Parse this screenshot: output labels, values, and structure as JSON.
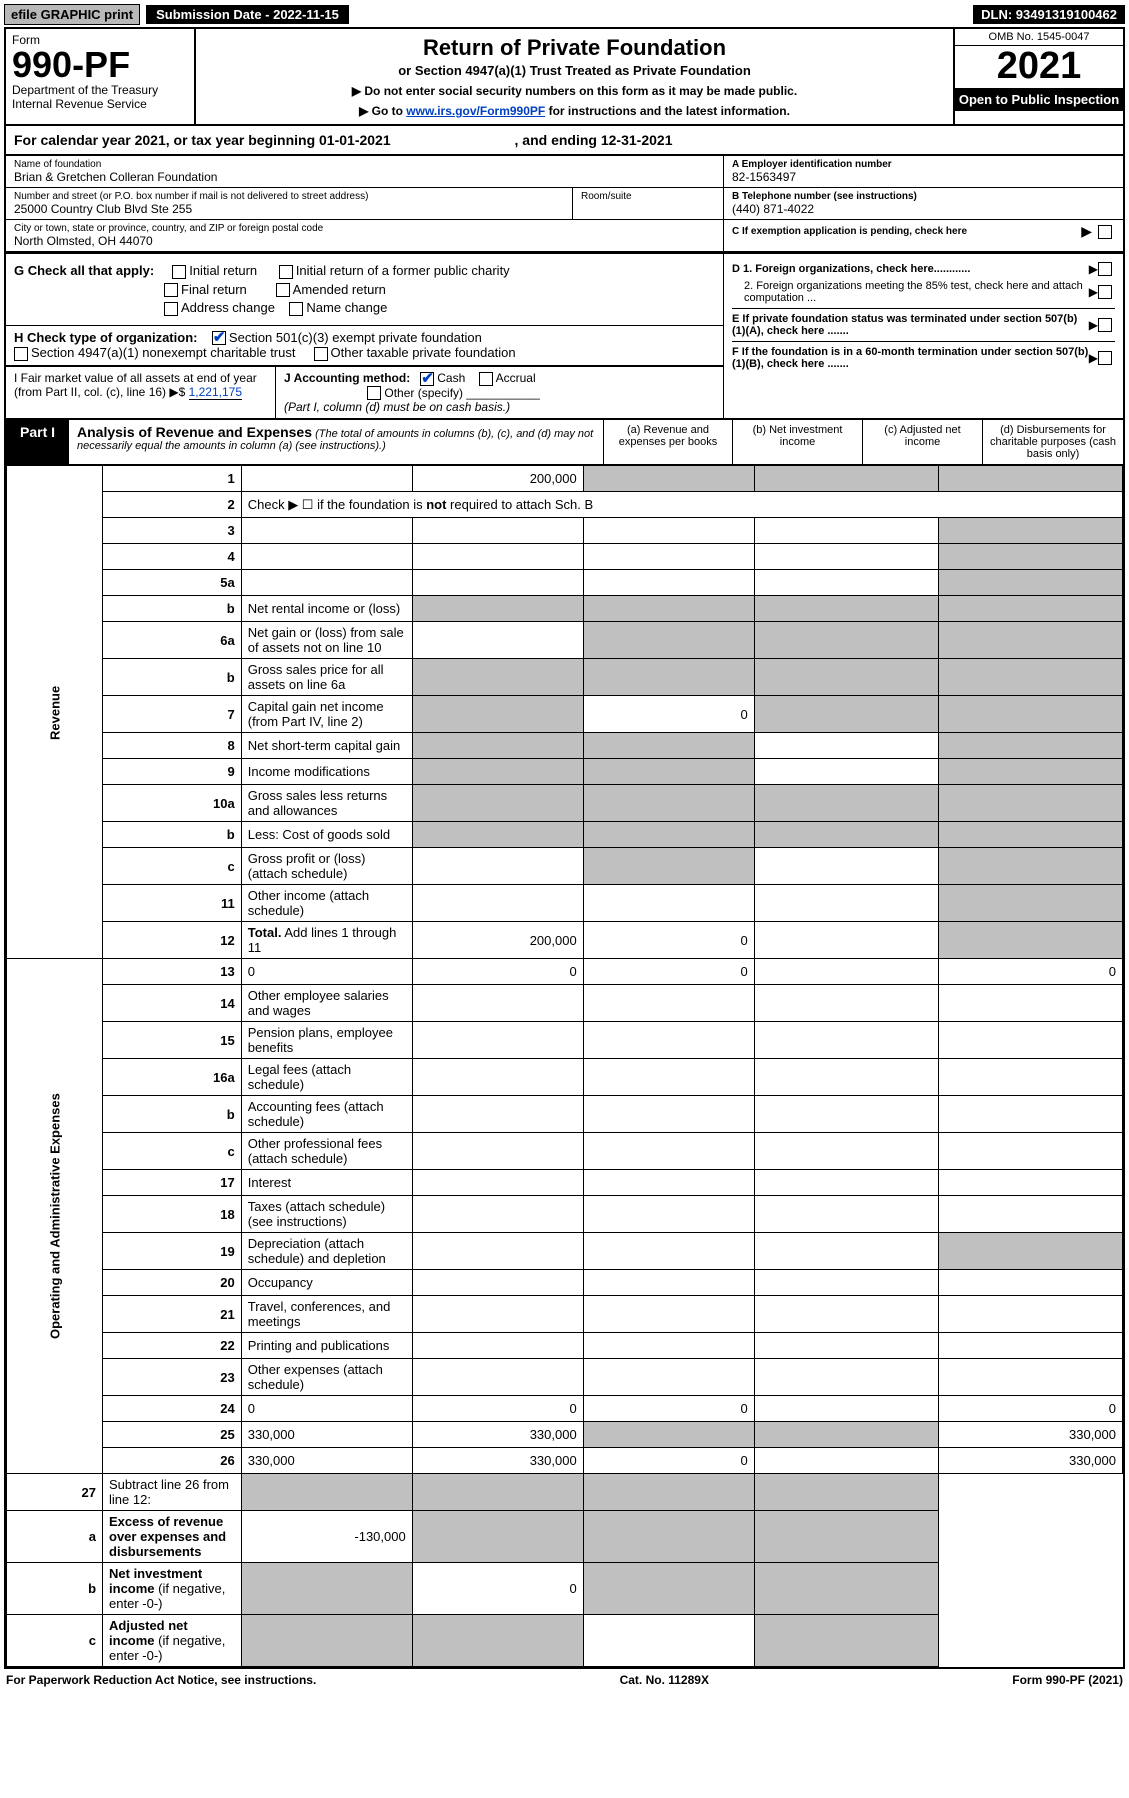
{
  "top": {
    "efile": "efile GRAPHIC print",
    "submission": "Submission Date - 2022-11-15",
    "dln": "DLN: 93491319100462"
  },
  "header": {
    "form_word": "Form",
    "form_num": "990-PF",
    "dept": "Department of the Treasury",
    "irs": "Internal Revenue Service",
    "title": "Return of Private Foundation",
    "subtitle": "or Section 4947(a)(1) Trust Treated as Private Foundation",
    "note1": "▶ Do not enter social security numbers on this form as it may be made public.",
    "note2_pre": "▶ Go to ",
    "note2_link": "www.irs.gov/Form990PF",
    "note2_post": " for instructions and the latest information.",
    "omb": "OMB No. 1545-0047",
    "year": "2021",
    "open": "Open to Public Inspection"
  },
  "cal": {
    "text_a": "For calendar year 2021, or tax year beginning 01-01-2021",
    "text_b": ", and ending 12-31-2021"
  },
  "info": {
    "name_lbl": "Name of foundation",
    "name": "Brian & Gretchen Colleran Foundation",
    "addr_lbl": "Number and street (or P.O. box number if mail is not delivered to street address)",
    "addr": "25000 Country Club Blvd Ste 255",
    "room_lbl": "Room/suite",
    "city_lbl": "City or town, state or province, country, and ZIP or foreign postal code",
    "city": "North Olmsted, OH  44070",
    "a_lbl": "A Employer identification number",
    "a_val": "82-1563497",
    "b_lbl": "B Telephone number (see instructions)",
    "b_val": "(440) 871-4022",
    "c_lbl": "C If exemption application is pending, check here",
    "d1": "D 1. Foreign organizations, check here............",
    "d2": "2. Foreign organizations meeting the 85% test, check here and attach computation ...",
    "e": "E  If private foundation status was terminated under section 507(b)(1)(A), check here .......",
    "f": "F  If the foundation is in a 60-month termination under section 507(b)(1)(B), check here .......",
    "g_lbl": "G Check all that apply:",
    "g1": "Initial return",
    "g2": "Final return",
    "g3": "Address change",
    "g4": "Initial return of a former public charity",
    "g5": "Amended return",
    "g6": "Name change",
    "h_lbl": "H Check type of organization:",
    "h1": "Section 501(c)(3) exempt private foundation",
    "h2": "Section 4947(a)(1) nonexempt charitable trust",
    "h3": "Other taxable private foundation",
    "i_lbl": "I Fair market value of all assets at end of year (from Part II, col. (c), line 16) ▶$",
    "i_val": "1,221,175",
    "j_lbl": "J Accounting method:",
    "j1": "Cash",
    "j2": "Accrual",
    "j3": "Other (specify)",
    "j_note": "(Part I, column (d) must be on cash basis.)"
  },
  "part1": {
    "label": "Part I",
    "title": "Analysis of Revenue and Expenses",
    "title_note": "(The total of amounts in columns (b), (c), and (d) may not necessarily equal the amounts in column (a) (see instructions).)",
    "col_a": "(a)  Revenue and expenses per books",
    "col_b": "(b)  Net investment income",
    "col_c": "(c)  Adjusted net income",
    "col_d": "(d)  Disbursements for charitable purposes (cash basis only)"
  },
  "side": {
    "revenue": "Revenue",
    "expenses": "Operating and Administrative Expenses"
  },
  "rows": [
    {
      "n": "1",
      "d": "",
      "a": "200,000",
      "b": "",
      "c": "",
      "sb": true,
      "sc": true,
      "sd": true
    },
    {
      "n": "2",
      "d": "Check ▶ ☐ if the foundation is <b>not</b> required to attach Sch. B",
      "nocols": true
    },
    {
      "n": "3",
      "d": "",
      "a": "",
      "b": "",
      "c": "",
      "sd": true
    },
    {
      "n": "4",
      "d": "",
      "a": "",
      "b": "",
      "c": "",
      "sd": true
    },
    {
      "n": "5a",
      "d": "",
      "a": "",
      "b": "",
      "c": "",
      "sd": true
    },
    {
      "n": "b",
      "d": "Net rental income or (loss)",
      "inset": true,
      "sa": true,
      "sb": true,
      "sc": true,
      "sd": true
    },
    {
      "n": "6a",
      "d": "Net gain or (loss) from sale of assets not on line 10",
      "a": "",
      "sb": true,
      "sc": true,
      "sd": true
    },
    {
      "n": "b",
      "d": "Gross sales price for all assets on line 6a",
      "inset": true,
      "sa": true,
      "sb": true,
      "sc": true,
      "sd": true
    },
    {
      "n": "7",
      "d": "Capital gain net income (from Part IV, line 2)",
      "sa": true,
      "b": "0",
      "sc": true,
      "sd": true
    },
    {
      "n": "8",
      "d": "Net short-term capital gain",
      "sa": true,
      "sb": true,
      "c": "",
      "sd": true
    },
    {
      "n": "9",
      "d": "Income modifications",
      "sa": true,
      "sb": true,
      "c": "",
      "sd": true
    },
    {
      "n": "10a",
      "d": "Gross sales less returns and allowances",
      "inset": true,
      "sa": true,
      "sb": true,
      "sc": true,
      "sd": true
    },
    {
      "n": "b",
      "d": "Less: Cost of goods sold",
      "inset": true,
      "sa": true,
      "sb": true,
      "sc": true,
      "sd": true
    },
    {
      "n": "c",
      "d": "Gross profit or (loss) (attach schedule)",
      "a": "",
      "sb": true,
      "c": "",
      "sd": true
    },
    {
      "n": "11",
      "d": "Other income (attach schedule)",
      "a": "",
      "b": "",
      "c": "",
      "sd": true
    },
    {
      "n": "12",
      "d": "<b>Total.</b> Add lines 1 through 11",
      "a": "200,000",
      "b": "0",
      "c": "",
      "sd": true
    }
  ],
  "exp_rows": [
    {
      "n": "13",
      "d": "0",
      "a": "0",
      "b": "0",
      "c": ""
    },
    {
      "n": "14",
      "d": "Other employee salaries and wages"
    },
    {
      "n": "15",
      "d": "Pension plans, employee benefits"
    },
    {
      "n": "16a",
      "d": "Legal fees (attach schedule)"
    },
    {
      "n": "b",
      "d": "Accounting fees (attach schedule)"
    },
    {
      "n": "c",
      "d": "Other professional fees (attach schedule)"
    },
    {
      "n": "17",
      "d": "Interest"
    },
    {
      "n": "18",
      "d": "Taxes (attach schedule) (see instructions)"
    },
    {
      "n": "19",
      "d": "Depreciation (attach schedule) and depletion",
      "sd": true
    },
    {
      "n": "20",
      "d": "Occupancy"
    },
    {
      "n": "21",
      "d": "Travel, conferences, and meetings"
    },
    {
      "n": "22",
      "d": "Printing and publications"
    },
    {
      "n": "23",
      "d": "Other expenses (attach schedule)"
    },
    {
      "n": "24",
      "d": "0",
      "a": "0",
      "b": "0",
      "c": ""
    },
    {
      "n": "25",
      "d": "330,000",
      "a": "330,000",
      "sb": true,
      "sc": true
    },
    {
      "n": "26",
      "d": "330,000",
      "a": "330,000",
      "b": "0",
      "c": ""
    }
  ],
  "net_rows": [
    {
      "n": "27",
      "d": "Subtract line 26 from line 12:",
      "sa": true,
      "sb": true,
      "sc": true,
      "sd": true
    },
    {
      "n": "a",
      "d": "<b>Excess of revenue over expenses and disbursements</b>",
      "a": "-130,000",
      "sb": true,
      "sc": true,
      "sd": true
    },
    {
      "n": "b",
      "d": "<b>Net investment income</b> (if negative, enter -0-)",
      "sa": true,
      "b": "0",
      "sc": true,
      "sd": true
    },
    {
      "n": "c",
      "d": "<b>Adjusted net income</b> (if negative, enter -0-)",
      "sa": true,
      "sb": true,
      "c": "",
      "sd": true
    }
  ],
  "footer": {
    "left": "For Paperwork Reduction Act Notice, see instructions.",
    "mid": "Cat. No. 11289X",
    "right": "Form 990-PF (2021)"
  },
  "colors": {
    "link": "#0040c0",
    "shade": "#c0c0c0"
  }
}
